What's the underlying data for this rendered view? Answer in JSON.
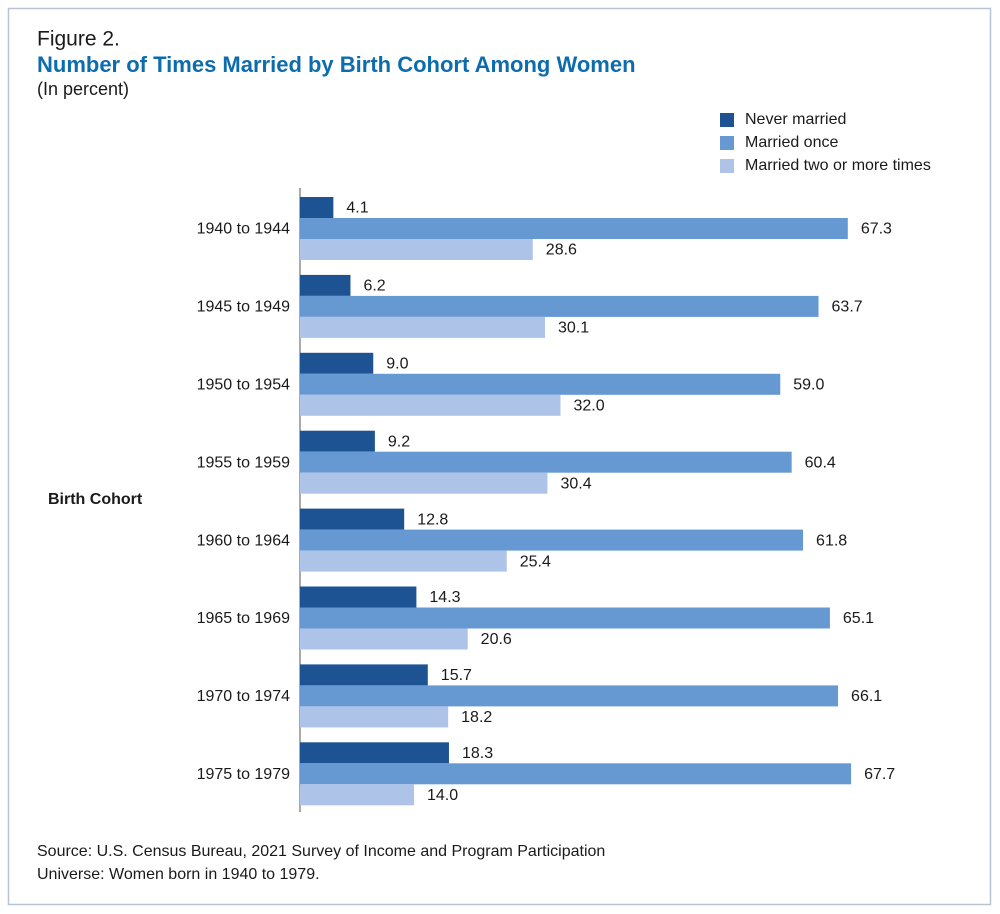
{
  "chart_data": {
    "type": "bar",
    "orientation": "horizontal",
    "figure_label": "Figure 2.",
    "title": "Number of Times Married by Birth Cohort Among Women",
    "subtitle": "(In percent)",
    "y_label": "Birth Cohort",
    "legend": "top-right",
    "categories": [
      "1940 to 1944",
      "1945 to 1949",
      "1950 to 1954",
      "1955 to 1959",
      "1960 to 1964",
      "1965 to 1969",
      "1970 to 1974",
      "1975 to 1979"
    ],
    "series": [
      {
        "name": "Never married",
        "color": "#1d5393",
        "values": [
          4.1,
          6.2,
          9,
          9.2,
          12.8,
          14.3,
          15.7,
          18.3
        ],
        "value_labels": [
          "4.1",
          "6.2",
          "9.0",
          "9.2",
          "12.8",
          "14.3",
          "15.7",
          "18.3"
        ]
      },
      {
        "name": "Married once",
        "color": "#6699d2",
        "values": [
          67.3,
          63.7,
          59,
          60.4,
          61.8,
          65.1,
          66.1,
          67.7
        ],
        "value_labels": [
          "67.3",
          "63.7",
          "59.0",
          "60.4",
          "61.8",
          "65.1",
          "66.1",
          "67.7"
        ]
      },
      {
        "name": "Married two or more times",
        "color": "#adc4e8",
        "values": [
          28.6,
          30.1,
          32,
          30.4,
          25.4,
          20.6,
          18.2,
          14
        ],
        "value_labels": [
          "28.6",
          "30.1",
          "32.0",
          "30.4",
          "25.4",
          "20.6",
          "18.2",
          "14.0"
        ]
      }
    ],
    "notes": [
      "Source: U.S. Census Bureau, 2021 Survey of Income and Program Participation",
      "Universe: Women born in 1940 to 1979."
    ]
  }
}
